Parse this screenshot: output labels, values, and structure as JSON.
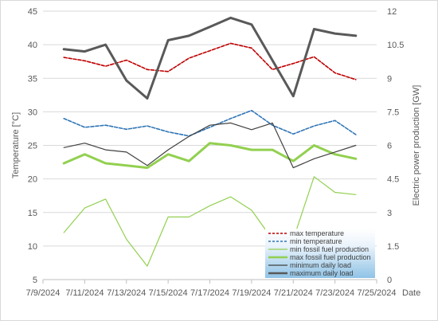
{
  "chart_data": {
    "type": "line",
    "x_tick_labels": [
      "7/9/2024",
      "7/11/2024",
      "7/13/2024",
      "7/15/2024",
      "7/17/2024",
      "7/19/2024",
      "7/21/2024",
      "7/23/2024",
      "7/25/2024"
    ],
    "x_dates": [
      "7/10/2024",
      "7/11/2024",
      "7/12/2024",
      "7/13/2024",
      "7/14/2024",
      "7/15/2024",
      "7/16/2024",
      "7/17/2024",
      "7/18/2024",
      "7/19/2024",
      "7/20/2024",
      "7/21/2024",
      "7/22/2024",
      "7/23/2024",
      "7/24/2024"
    ],
    "xlabel": "Date",
    "ylabel_left": "Temperature [°C]",
    "ylabel_right": "Electric power production [GW]",
    "ylim_left": [
      5,
      45
    ],
    "ylim_right": [
      0,
      12
    ],
    "y_ticks_left": [
      "5",
      "10",
      "15",
      "20",
      "25",
      "30",
      "35",
      "40",
      "45"
    ],
    "y_ticks_right": [
      "0",
      "1.5",
      "3",
      "4.5",
      "6",
      "7.5",
      "9",
      "10.5",
      "12"
    ],
    "grid": "horizontal",
    "legend_position": "bottom-right",
    "series": [
      {
        "name": "max temperature",
        "axis": "left",
        "color": "#c00000",
        "style": "dashed",
        "values": [
          38.1,
          37.6,
          36.8,
          37.7,
          36.3,
          36.0,
          38.0,
          39.1,
          40.2,
          39.5,
          36.3,
          37.2,
          38.2,
          35.8,
          34.8
        ]
      },
      {
        "name": "min temperature",
        "axis": "left",
        "color": "#2e75b6",
        "style": "dashed",
        "values": [
          29.0,
          27.7,
          28.0,
          27.4,
          27.9,
          27.0,
          26.4,
          27.7,
          29.0,
          30.2,
          28.0,
          26.7,
          27.9,
          28.7,
          26.6
        ]
      },
      {
        "name": "min fossil fuel production",
        "axis": "right",
        "color": "#92d050",
        "style": "solid-thin",
        "values": [
          2.1,
          3.2,
          3.6,
          1.8,
          0.6,
          2.8,
          2.8,
          3.3,
          3.7,
          3.1,
          1.8,
          1.8,
          4.6,
          3.9,
          3.8
        ]
      },
      {
        "name": "max fossil fuel production",
        "axis": "right",
        "color": "#92d050",
        "style": "solid-thick",
        "values": [
          5.2,
          5.6,
          5.2,
          5.1,
          5.0,
          5.6,
          5.3,
          6.1,
          6.0,
          5.8,
          5.8,
          5.3,
          6.0,
          5.6,
          5.4
        ]
      },
      {
        "name": "minimum daily load",
        "axis": "right",
        "color": "#404040",
        "style": "solid-thin",
        "values": [
          5.9,
          6.1,
          5.8,
          5.7,
          5.1,
          5.8,
          6.4,
          6.9,
          7.0,
          6.7,
          7.0,
          5.0,
          5.4,
          5.7,
          6.0
        ]
      },
      {
        "name": "maximum daily load",
        "axis": "right",
        "color": "#595959",
        "style": "solid-thick",
        "values": [
          10.3,
          10.2,
          10.5,
          8.9,
          8.1,
          10.7,
          10.9,
          11.3,
          11.7,
          11.4,
          9.8,
          8.2,
          11.2,
          11.0,
          10.9
        ]
      }
    ]
  }
}
